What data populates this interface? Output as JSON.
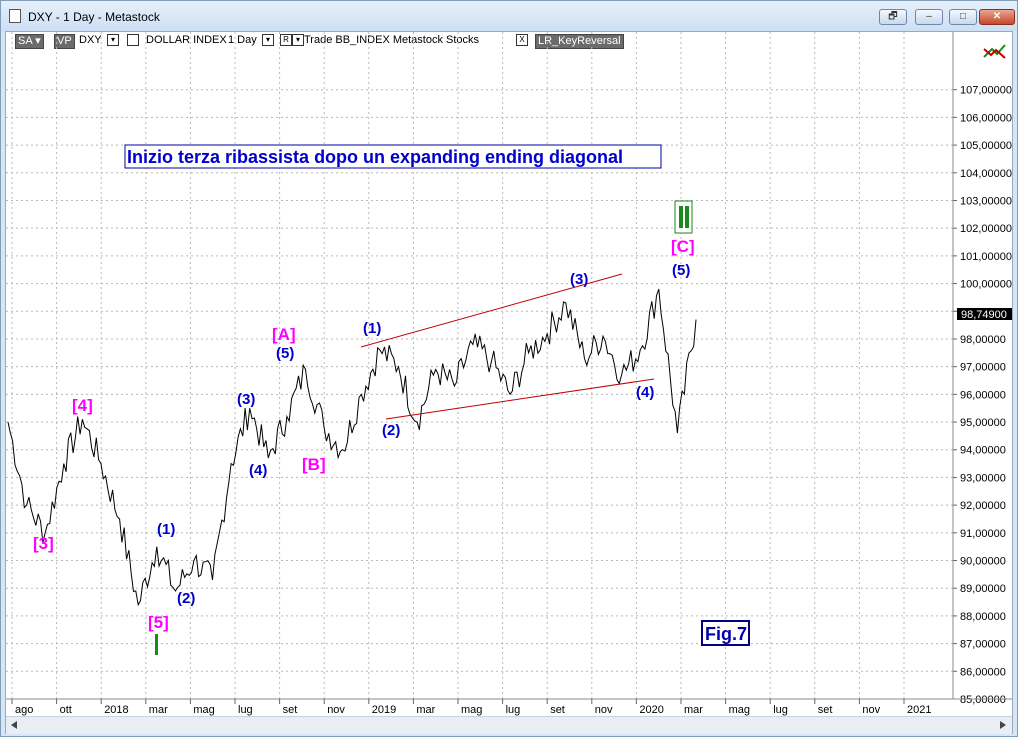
{
  "window": {
    "title": "DXY - 1 Day - Metastock",
    "buttons": [
      "🗗",
      "–",
      "□",
      "✕"
    ]
  },
  "toolbar": {
    "sa": "SA ▾",
    "vp": "VP",
    "symbol": "DXY",
    "name": "DOLLAR INDEX",
    "period": "1 Day",
    "r": "R",
    "source": "Trade  BB_INDEX  Metastock  Stocks",
    "x": "X",
    "indicator": "LR_KeyReversal"
  },
  "annotation_title": "Inizio terza ribassista dopo un expanding ending diagonal",
  "figure_label": "Fig.7",
  "current_price": "98,74900",
  "chart_data": {
    "type": "line",
    "y_range": [
      85,
      108
    ],
    "y_tick_labels": [
      "107,00000",
      "106,00000",
      "105,00000",
      "104,00000",
      "103,00000",
      "102,00000",
      "101,00000",
      "100,00000",
      "99,00000",
      "98,00000",
      "97,00000",
      "96,00000",
      "95,00000",
      "94,00000",
      "93,00000",
      "92,00000",
      "91,00000",
      "90,00000",
      "89,00000",
      "88,00000",
      "87,00000",
      "86,00000",
      "85,00000"
    ],
    "x_tick_labels": [
      "ago",
      "ott",
      "2018",
      "mar",
      "mag",
      "lug",
      "set",
      "nov",
      "2019",
      "mar",
      "mag",
      "lug",
      "set",
      "nov",
      "2020",
      "mar",
      "mag",
      "lug",
      "set",
      "nov",
      "2021"
    ],
    "price_path": [
      {
        "t": "ago 2017",
        "v": 95.0
      },
      {
        "t": "set 2017",
        "v": 92.0
      },
      {
        "t": "set 2017",
        "v": 91.0
      },
      {
        "t": "ott 2017",
        "v": 93.5
      },
      {
        "t": "nov 2017",
        "v": 95.1
      },
      {
        "t": "dic 2017",
        "v": 93.5
      },
      {
        "t": "gen 2018",
        "v": 91.5
      },
      {
        "t": "feb 2018",
        "v": 88.4
      },
      {
        "t": "feb 2018",
        "v": 90.5
      },
      {
        "t": "mar 2018",
        "v": 88.9
      },
      {
        "t": "mar 2018",
        "v": 90.0
      },
      {
        "t": "apr 2018",
        "v": 89.3
      },
      {
        "t": "mag 2018",
        "v": 93.5
      },
      {
        "t": "giu 2018",
        "v": 95.5
      },
      {
        "t": "giu 2018",
        "v": 93.7
      },
      {
        "t": "lug 2018",
        "v": 95.2
      },
      {
        "t": "ago 2018",
        "v": 96.9
      },
      {
        "t": "ago 2018",
        "v": 94.8
      },
      {
        "t": "set 2018",
        "v": 94.0
      },
      {
        "t": "ott 2018",
        "v": 96.0
      },
      {
        "t": "nov 2018",
        "v": 97.6
      },
      {
        "t": "dic 2018",
        "v": 97.0
      },
      {
        "t": "gen 2019",
        "v": 95.0
      },
      {
        "t": "feb 2019",
        "v": 96.9
      },
      {
        "t": "mar 2019",
        "v": 96.3
      },
      {
        "t": "apr 2019",
        "v": 97.8
      },
      {
        "t": "mag 2019",
        "v": 97.2
      },
      {
        "t": "giu 2019",
        "v": 96.0
      },
      {
        "t": "lug 2019",
        "v": 97.5
      },
      {
        "t": "ago 2019",
        "v": 98.2
      },
      {
        "t": "set 2019",
        "v": 99.3
      },
      {
        "t": "ott 2019",
        "v": 97.3
      },
      {
        "t": "nov 2019",
        "v": 98.1
      },
      {
        "t": "dic 2019",
        "v": 96.7
      },
      {
        "t": "gen 2020",
        "v": 97.6
      },
      {
        "t": "feb 2020",
        "v": 99.8
      },
      {
        "t": "mar 2020",
        "v": 94.6
      },
      {
        "t": "mar 2020",
        "v": 98.7
      }
    ],
    "wave_labels": [
      "[3]",
      "[4]",
      "[5]",
      "I",
      "(1)",
      "(2)",
      "(3)",
      "(4)",
      "(5)",
      "[A]",
      "[B]",
      "(1)",
      "(2)",
      "(3)",
      "(4)",
      "(5)",
      "[C]",
      "II"
    ]
  }
}
